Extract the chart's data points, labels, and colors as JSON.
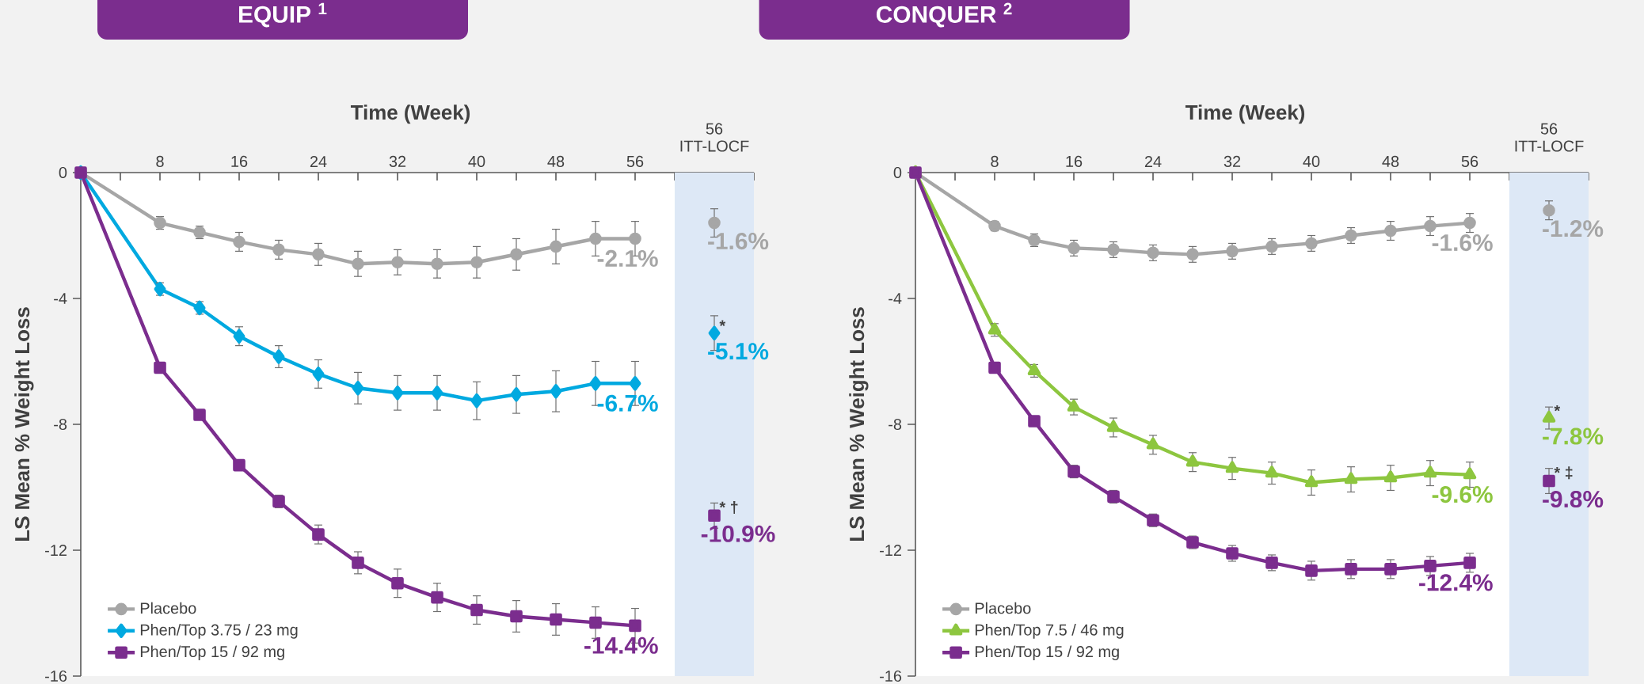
{
  "chart_data": [
    {
      "type": "line",
      "title": "EQUIP $^{1}$",
      "xlabel": "Time (Week)",
      "ylabel": "LS Mean % Weight Loss",
      "x": [
        0,
        8,
        12,
        16,
        20,
        24,
        28,
        32,
        36,
        40,
        44,
        48,
        52,
        56,
        60,
        64
      ],
      "xlim": [
        0,
        68
      ],
      "ylim": [
        -16,
        0
      ],
      "xticks": [
        {
          "value": 4,
          "label": null
        },
        8,
        {
          "value": 12,
          "label": null
        },
        16,
        {
          "value": 20,
          "label": null
        },
        24,
        {
          "value": 28,
          "label": null
        },
        32,
        {
          "value": 36,
          "label": null
        },
        40,
        {
          "value": 44,
          "label": null
        },
        48,
        {
          "value": 52,
          "label": null
        },
        56,
        {
          "value": 60,
          "label": null
        },
        {
          "value": 64,
          "label": null
        },
        {
          "value": 68,
          "label": null
        }
      ],
      "yticks": [
        0,
        -4,
        -8,
        -12,
        -16
      ],
      "grid": false,
      "legend": "bottom left",
      "line_style": "solid",
      "bands": [
        {
          "axis": "x",
          "from": 60,
          "to": 68,
          "color": "#dde8f6"
        }
      ],
      "series": [
        {
          "name": "Placebo",
          "color": "#a6a6a6",
          "marker": "circle",
          "values": [
            0,
            -1.6,
            -1.9,
            -2.2,
            -2.45,
            -2.6,
            -2.9,
            -2.85,
            -2.9,
            -2.85,
            -2.6,
            -2.35,
            -2.1,
            -2.1,
            null,
            -1.6
          ],
          "errors": [
            null,
            0.2,
            0.2,
            0.3,
            0.3,
            0.35,
            0.4,
            0.4,
            0.45,
            0.5,
            0.5,
            0.55,
            0.55,
            0.55,
            null,
            0.45
          ],
          "value_labels": [
            null,
            null,
            null,
            null,
            null,
            null,
            null,
            null,
            null,
            null,
            null,
            null,
            null,
            "-2.1%",
            null,
            "-1.6%"
          ]
        },
        {
          "name": "Phen/Top 3.75 / 23 mg",
          "color": "#00a9e0",
          "marker": "diamond",
          "values": [
            0,
            -3.7,
            -4.3,
            -5.2,
            -5.85,
            -6.4,
            -6.85,
            -7.0,
            -7.0,
            -7.25,
            -7.05,
            -6.95,
            -6.7,
            -6.7,
            null,
            -5.1
          ],
          "errors": [
            null,
            0.2,
            0.2,
            0.3,
            0.35,
            0.45,
            0.5,
            0.55,
            0.55,
            0.6,
            0.6,
            0.65,
            0.7,
            0.7,
            null,
            0.55
          ],
          "value_labels": [
            null,
            null,
            null,
            null,
            null,
            null,
            null,
            null,
            null,
            null,
            null,
            null,
            null,
            "-6.7%",
            null,
            "-5.1%"
          ]
        },
        {
          "name": "Phen/Top 15 / 92 mg",
          "color": "#7b2d8e",
          "marker": "square",
          "values": [
            0,
            -6.2,
            -7.7,
            -9.3,
            -10.45,
            -11.5,
            -12.4,
            -13.05,
            -13.5,
            -13.9,
            -14.1,
            -14.2,
            -14.3,
            -14.4,
            null,
            -10.9
          ],
          "errors": [
            null,
            null,
            null,
            null,
            0.2,
            0.3,
            0.35,
            0.45,
            0.45,
            0.45,
            0.5,
            0.5,
            0.5,
            0.55,
            null,
            0.4
          ],
          "value_labels": [
            null,
            null,
            null,
            null,
            null,
            null,
            null,
            null,
            null,
            null,
            null,
            null,
            null,
            "-14.4%",
            null,
            "-10.9%"
          ]
        }
      ],
      "annotations": [
        "56 ITT-LOCF",
        "*",
        "* †"
      ]
    },
    {
      "type": "line",
      "title": "CONQUER $^{2}$",
      "xlabel": "Time (Week)",
      "ylabel": "LS Mean % Weight Loss",
      "x": [
        0,
        8,
        12,
        16,
        20,
        24,
        28,
        32,
        36,
        40,
        44,
        48,
        52,
        56,
        60,
        64
      ],
      "xlim": [
        0,
        68
      ],
      "ylim": [
        -16,
        0
      ],
      "xticks": [
        {
          "value": 4,
          "label": null
        },
        8,
        {
          "value": 12,
          "label": null
        },
        16,
        {
          "value": 20,
          "label": null
        },
        24,
        {
          "value": 28,
          "label": null
        },
        32,
        {
          "value": 36,
          "label": null
        },
        40,
        {
          "value": 44,
          "label": null
        },
        48,
        {
          "value": 52,
          "label": null
        },
        56,
        {
          "value": 60,
          "label": null
        },
        {
          "value": 64,
          "label": null
        },
        {
          "value": 68,
          "label": null
        }
      ],
      "yticks": [
        0,
        -4,
        -8,
        -12,
        -16
      ],
      "grid": false,
      "legend": "bottom left",
      "line_style": "solid",
      "bands": [
        {
          "axis": "x",
          "from": 60,
          "to": 68,
          "color": "#dde8f6"
        }
      ],
      "series": [
        {
          "name": "Placebo",
          "color": "#a6a6a6",
          "marker": "circle",
          "values": [
            0,
            -1.7,
            -2.15,
            -2.4,
            -2.45,
            -2.55,
            -2.6,
            -2.5,
            -2.35,
            -2.25,
            -2.0,
            -1.85,
            -1.7,
            -1.6,
            null,
            -1.2
          ],
          "errors": [
            null,
            0.15,
            0.2,
            0.25,
            0.25,
            0.25,
            0.25,
            0.25,
            0.25,
            0.25,
            0.25,
            0.3,
            0.3,
            0.3,
            null,
            0.3
          ],
          "value_labels": [
            null,
            null,
            null,
            null,
            null,
            null,
            null,
            null,
            null,
            null,
            null,
            null,
            null,
            "-1.6%",
            null,
            "-1.2%"
          ]
        },
        {
          "name": "Phen/Top 7.5 / 46 mg",
          "color": "#8dc63f",
          "marker": "triangle",
          "values": [
            0,
            -5.0,
            -6.3,
            -7.45,
            -8.1,
            -8.65,
            -9.2,
            -9.4,
            -9.55,
            -9.85,
            -9.75,
            -9.7,
            -9.55,
            -9.6,
            null,
            -7.8
          ],
          "errors": [
            null,
            0.2,
            0.2,
            0.25,
            0.3,
            0.3,
            0.3,
            0.35,
            0.35,
            0.4,
            0.4,
            0.4,
            0.4,
            0.4,
            null,
            0.35
          ],
          "value_labels": [
            null,
            null,
            null,
            null,
            null,
            null,
            null,
            null,
            null,
            null,
            null,
            null,
            null,
            "-9.6%",
            null,
            "-7.8%"
          ]
        },
        {
          "name": "Phen/Top 15 / 92 mg",
          "color": "#7b2d8e",
          "marker": "square",
          "values": [
            0,
            -6.2,
            -7.9,
            -9.5,
            -10.3,
            -11.05,
            -11.75,
            -12.1,
            -12.4,
            -12.65,
            -12.6,
            -12.6,
            -12.5,
            -12.4,
            null,
            -9.8
          ],
          "errors": [
            null,
            null,
            null,
            0.2,
            0.2,
            0.2,
            0.2,
            0.25,
            0.25,
            0.3,
            0.3,
            0.3,
            0.3,
            0.3,
            null,
            0.4
          ],
          "value_labels": [
            null,
            null,
            null,
            null,
            null,
            null,
            null,
            null,
            null,
            null,
            null,
            null,
            null,
            "-12.4%",
            null,
            "-9.8%"
          ]
        }
      ],
      "annotations": [
        "56 ITT-LOCF",
        "*",
        "* ‡"
      ]
    }
  ]
}
